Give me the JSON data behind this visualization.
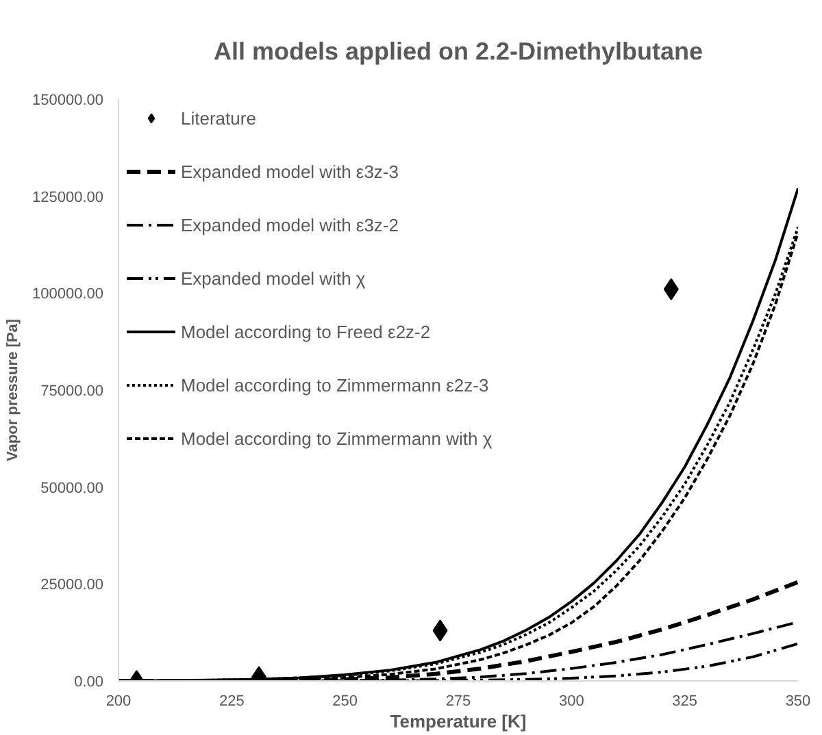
{
  "chart_data": {
    "type": "line",
    "title": "All models applied on 2.2-Dimethylbutane",
    "xlabel": "Temperature [K]",
    "ylabel": "Vapor pressure [Pa]",
    "xlim": [
      200,
      350
    ],
    "xticks": [
      200,
      225,
      250,
      275,
      300,
      325,
      350
    ],
    "ylim": [
      0,
      150000
    ],
    "yticks": [
      {
        "value": 0,
        "label": "0.00"
      },
      {
        "value": 25000,
        "label": "25000.00"
      },
      {
        "value": 50000,
        "label": "50000.00"
      },
      {
        "value": 75000,
        "label": "75000.00"
      },
      {
        "value": 100000,
        "label": "100000.00"
      },
      {
        "value": 125000,
        "label": "125000.00"
      },
      {
        "value": 150000,
        "label": "150000.00"
      }
    ],
    "grid": false,
    "legend": "top left",
    "series": [
      {
        "name": "Literature",
        "type": "scatter",
        "marker": "diamond",
        "color": "#000000",
        "x": [
          204,
          231,
          271,
          322
        ],
        "values": [
          0,
          1000,
          13000,
          101000
        ]
      },
      {
        "name": "Expanded model with ε3z-3",
        "marker": "none",
        "line_style": "longdash",
        "color": "#000000",
        "x": [
          200,
          220,
          240,
          250,
          260,
          270,
          280,
          290,
          300,
          310,
          320,
          330,
          340,
          350
        ],
        "values": [
          0,
          0,
          200,
          400,
          900,
          1800,
          3200,
          5100,
          7500,
          10100,
          13300,
          17000,
          21000,
          25500
        ]
      },
      {
        "name": "Expanded model with ε3z-2",
        "marker": "none",
        "line_style": "dashdot",
        "color": "#000000",
        "x": [
          200,
          240,
          250,
          260,
          270,
          280,
          290,
          300,
          310,
          320,
          330,
          340,
          350
        ],
        "values": [
          0,
          0,
          100,
          200,
          500,
          1000,
          1900,
          3200,
          4800,
          6800,
          9400,
          12200,
          15200
        ]
      },
      {
        "name": "Expanded model with χ",
        "marker": "none",
        "line_style": "dashdotdot",
        "color": "#000000",
        "x": [
          200,
          260,
          270,
          280,
          290,
          300,
          310,
          320,
          330,
          340,
          350
        ],
        "values": [
          0,
          0,
          100,
          200,
          400,
          700,
          1300,
          2300,
          3800,
          6200,
          9600
        ]
      },
      {
        "name": "Model according to Freed ε2z-2",
        "marker": "none",
        "line_style": "solid",
        "color": "#000000",
        "x": [
          200,
          210,
          220,
          230,
          240,
          250,
          260,
          270,
          280,
          285,
          290,
          295,
          300,
          305,
          310,
          315,
          320,
          325,
          330,
          335,
          340,
          345,
          350
        ],
        "values": [
          0,
          100,
          200,
          400,
          800,
          1600,
          2800,
          4800,
          8100,
          10300,
          13100,
          16400,
          20500,
          25300,
          31100,
          37800,
          46000,
          55200,
          66200,
          78300,
          92700,
          108500,
          127000
        ]
      },
      {
        "name": "Model according to Zimmermann ε2z-3",
        "marker": "none",
        "line_style": "dotted",
        "color": "#000000",
        "x": [
          200,
          210,
          220,
          230,
          240,
          250,
          260,
          270,
          280,
          285,
          290,
          295,
          300,
          305,
          310,
          315,
          320,
          325,
          330,
          335,
          340,
          345,
          350
        ],
        "values": [
          0,
          100,
          200,
          400,
          800,
          1400,
          2600,
          4400,
          7400,
          9400,
          12000,
          15000,
          18900,
          23200,
          28600,
          34800,
          42300,
          50800,
          60900,
          72000,
          85300,
          99800,
          117000
        ]
      },
      {
        "name": "Model according to Zimmermann with χ",
        "marker": "none",
        "line_style": "dashed",
        "color": "#000000",
        "x": [
          200,
          210,
          220,
          230,
          240,
          250,
          260,
          270,
          280,
          285,
          290,
          295,
          300,
          305,
          310,
          315,
          320,
          325,
          330,
          335,
          340,
          345,
          350
        ],
        "values": [
          0,
          0,
          100,
          200,
          500,
          900,
          1700,
          3100,
          5500,
          7200,
          9300,
          11800,
          15000,
          19200,
          24600,
          31000,
          38600,
          47200,
          57300,
          68500,
          81600,
          97100,
          115600
        ]
      }
    ]
  }
}
